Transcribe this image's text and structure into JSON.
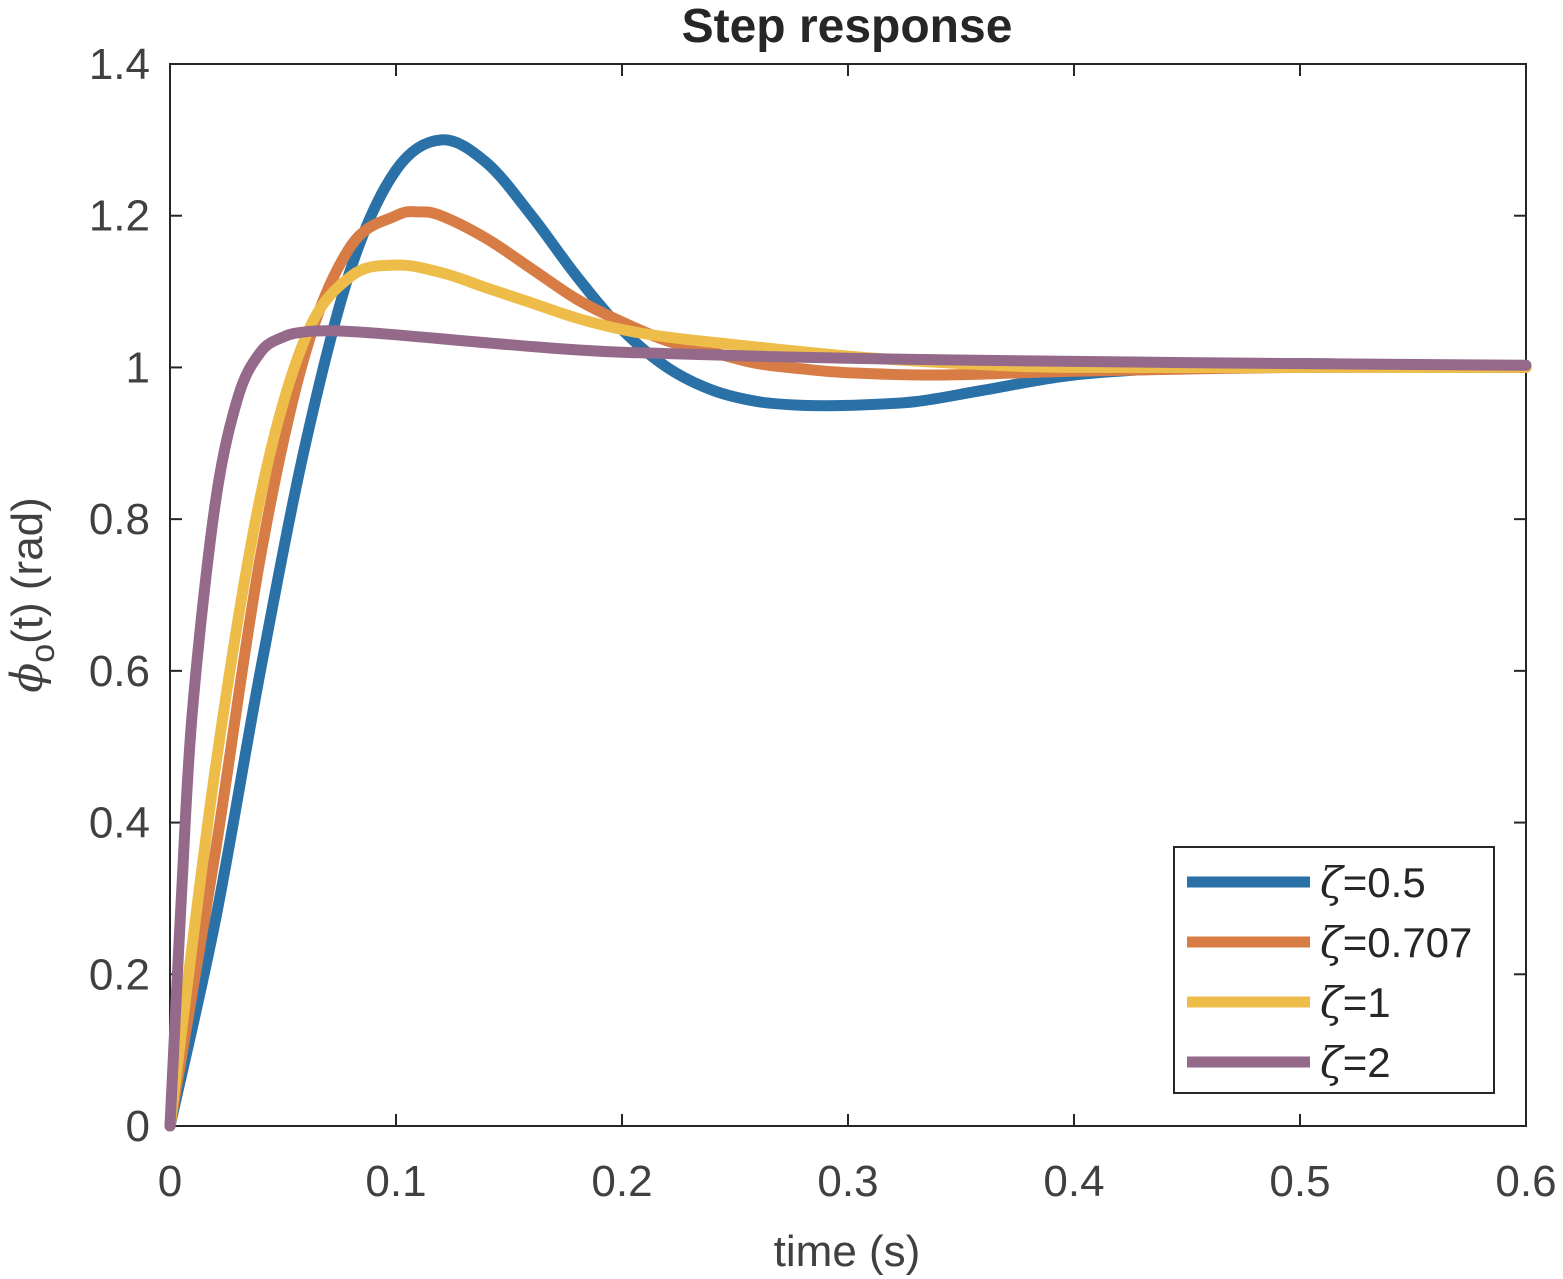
{
  "chart_data": {
    "type": "line",
    "title": "Step response",
    "xlabel": "time (s)",
    "ylabel": {
      "symbol": "ϕ",
      "subscript": "o",
      "rest": "(t)  (rad)"
    },
    "xlim": [
      0,
      0.6
    ],
    "ylim": [
      0,
      1.4
    ],
    "xticks": [
      "0",
      "0.1",
      "0.2",
      "0.3",
      "0.4",
      "0.5",
      "0.6"
    ],
    "yticks": [
      "0",
      "0.2",
      "0.4",
      "0.6",
      "0.8",
      "1",
      "1.2",
      "1.4"
    ],
    "grid": false,
    "legend_position": "bottom-right",
    "series": [
      {
        "name": "ζ=0.5",
        "name_parts": [
          "ζ",
          "=0.5"
        ],
        "color": "#2a71a8",
        "x": [
          0,
          0.02,
          0.04,
          0.06,
          0.08,
          0.1,
          0.12,
          0.14,
          0.16,
          0.18,
          0.2,
          0.22,
          0.24,
          0.26,
          0.28,
          0.3,
          0.33,
          0.36,
          0.4,
          0.45,
          0.5,
          0.55,
          0.6
        ],
        "values": [
          0,
          0.27,
          0.6,
          0.9,
          1.13,
          1.26,
          1.3,
          1.27,
          1.2,
          1.12,
          1.05,
          1.0,
          0.97,
          0.955,
          0.95,
          0.95,
          0.955,
          0.97,
          0.99,
          1.0,
          1.005,
          1.002,
          1.0
        ]
      },
      {
        "name": "ζ=0.707",
        "name_parts": [
          "ζ",
          "=0.707"
        ],
        "color": "#d77c45",
        "x": [
          0,
          0.02,
          0.04,
          0.06,
          0.08,
          0.1,
          0.11,
          0.12,
          0.14,
          0.16,
          0.18,
          0.2,
          0.22,
          0.24,
          0.26,
          0.28,
          0.3,
          0.34,
          0.4,
          0.5,
          0.6
        ],
        "values": [
          0,
          0.36,
          0.75,
          1.02,
          1.16,
          1.2,
          1.205,
          1.2,
          1.17,
          1.13,
          1.09,
          1.06,
          1.035,
          1.02,
          1.005,
          0.998,
          0.993,
          0.99,
          0.995,
          1.0,
          1.0
        ]
      },
      {
        "name": "ζ=1",
        "name_parts": [
          "ζ",
          "=1"
        ],
        "color": "#eebc48",
        "x": [
          0,
          0.02,
          0.04,
          0.06,
          0.08,
          0.1,
          0.12,
          0.14,
          0.16,
          0.18,
          0.2,
          0.22,
          0.25,
          0.3,
          0.35,
          0.4,
          0.5,
          0.6
        ],
        "values": [
          0,
          0.47,
          0.83,
          1.04,
          1.12,
          1.135,
          1.125,
          1.105,
          1.085,
          1.065,
          1.05,
          1.04,
          1.03,
          1.015,
          1.005,
          1.0,
          1.0,
          1.0
        ],
        "x_note": "time in s"
      },
      {
        "name": "ζ=2",
        "name_parts": [
          "ζ",
          "=2"
        ],
        "color": "#94698a",
        "x": [
          0,
          0.005,
          0.01,
          0.02,
          0.03,
          0.04,
          0.05,
          0.06,
          0.075,
          0.1,
          0.15,
          0.2,
          0.3,
          0.4,
          0.5,
          0.6
        ],
        "values": [
          0,
          0.3,
          0.55,
          0.82,
          0.96,
          1.02,
          1.04,
          1.047,
          1.048,
          1.043,
          1.03,
          1.02,
          1.012,
          1.008,
          1.005,
          1.003
        ]
      }
    ]
  }
}
